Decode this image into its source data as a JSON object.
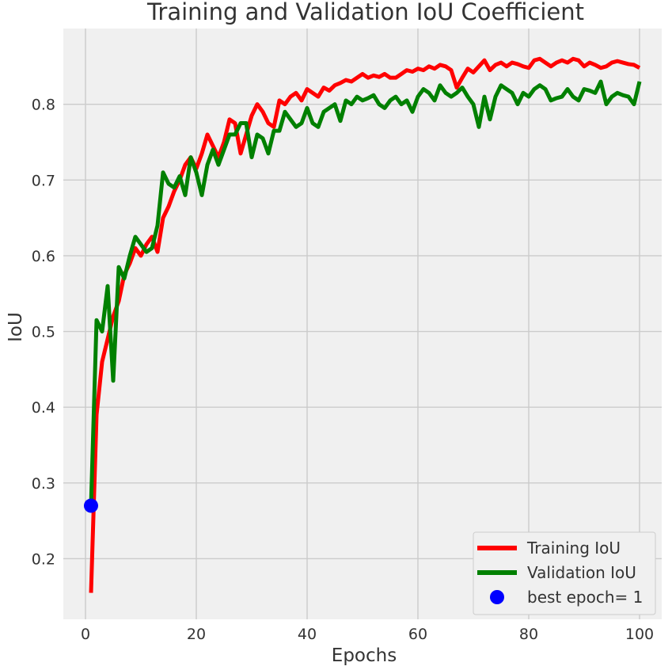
{
  "chart_data": {
    "type": "line",
    "title": "Training and Validation IoU Coefficient",
    "xlabel": "Epochs",
    "ylabel": "IoU",
    "xlim": [
      -4,
      104
    ],
    "ylim": [
      0.12,
      0.9
    ],
    "x_ticks": [
      0,
      20,
      40,
      60,
      80,
      100
    ],
    "y_ticks": [
      0.2,
      0.3,
      0.4,
      0.5,
      0.6,
      0.7,
      0.8
    ],
    "grid": true,
    "legend_position": "bottom-right",
    "series": [
      {
        "name": "Training IoU",
        "color": "#ff0000",
        "x": [
          1,
          2,
          3,
          4,
          5,
          6,
          7,
          8,
          9,
          10,
          11,
          12,
          13,
          14,
          15,
          16,
          17,
          18,
          19,
          20,
          21,
          22,
          23,
          24,
          25,
          26,
          27,
          28,
          29,
          30,
          31,
          32,
          33,
          34,
          35,
          36,
          37,
          38,
          39,
          40,
          41,
          42,
          43,
          44,
          45,
          46,
          47,
          48,
          49,
          50,
          51,
          52,
          53,
          54,
          55,
          56,
          57,
          58,
          59,
          60,
          61,
          62,
          63,
          64,
          65,
          66,
          67,
          68,
          69,
          70,
          71,
          72,
          73,
          74,
          75,
          76,
          77,
          78,
          79,
          80,
          81,
          82,
          83,
          84,
          85,
          86,
          87,
          88,
          89,
          90,
          91,
          92,
          93,
          94,
          95,
          96,
          97,
          98,
          99,
          100
        ],
        "values": [
          0.155,
          0.39,
          0.46,
          0.49,
          0.52,
          0.54,
          0.575,
          0.59,
          0.61,
          0.6,
          0.615,
          0.625,
          0.605,
          0.65,
          0.665,
          0.685,
          0.7,
          0.72,
          0.73,
          0.715,
          0.735,
          0.76,
          0.745,
          0.73,
          0.75,
          0.78,
          0.775,
          0.735,
          0.76,
          0.785,
          0.8,
          0.79,
          0.775,
          0.77,
          0.805,
          0.8,
          0.81,
          0.815,
          0.805,
          0.82,
          0.815,
          0.81,
          0.822,
          0.818,
          0.825,
          0.828,
          0.832,
          0.83,
          0.835,
          0.84,
          0.835,
          0.838,
          0.836,
          0.84,
          0.835,
          0.835,
          0.84,
          0.845,
          0.843,
          0.847,
          0.845,
          0.85,
          0.847,
          0.852,
          0.85,
          0.845,
          0.822,
          0.835,
          0.847,
          0.842,
          0.85,
          0.858,
          0.845,
          0.852,
          0.855,
          0.85,
          0.855,
          0.853,
          0.85,
          0.848,
          0.858,
          0.86,
          0.855,
          0.85,
          0.855,
          0.858,
          0.855,
          0.86,
          0.858,
          0.85,
          0.855,
          0.852,
          0.848,
          0.85,
          0.855,
          0.857,
          0.855,
          0.853,
          0.852,
          0.848
        ]
      },
      {
        "name": "Validation IoU",
        "color": "#008000",
        "x": [
          1,
          2,
          3,
          4,
          5,
          6,
          7,
          8,
          9,
          10,
          11,
          12,
          13,
          14,
          15,
          16,
          17,
          18,
          19,
          20,
          21,
          22,
          23,
          24,
          25,
          26,
          27,
          28,
          29,
          30,
          31,
          32,
          33,
          34,
          35,
          36,
          37,
          38,
          39,
          40,
          41,
          42,
          43,
          44,
          45,
          46,
          47,
          48,
          49,
          50,
          51,
          52,
          53,
          54,
          55,
          56,
          57,
          58,
          59,
          60,
          61,
          62,
          63,
          64,
          65,
          66,
          67,
          68,
          69,
          70,
          71,
          72,
          73,
          74,
          75,
          76,
          77,
          78,
          79,
          80,
          81,
          82,
          83,
          84,
          85,
          86,
          87,
          88,
          89,
          90,
          91,
          92,
          93,
          94,
          95,
          96,
          97,
          98,
          99,
          100
        ],
        "values": [
          0.27,
          0.515,
          0.5,
          0.56,
          0.435,
          0.585,
          0.57,
          0.6,
          0.625,
          0.615,
          0.605,
          0.61,
          0.64,
          0.71,
          0.695,
          0.69,
          0.705,
          0.68,
          0.73,
          0.71,
          0.68,
          0.72,
          0.74,
          0.72,
          0.74,
          0.76,
          0.76,
          0.775,
          0.775,
          0.73,
          0.76,
          0.755,
          0.735,
          0.765,
          0.765,
          0.79,
          0.78,
          0.77,
          0.775,
          0.795,
          0.775,
          0.77,
          0.79,
          0.795,
          0.8,
          0.778,
          0.805,
          0.8,
          0.81,
          0.805,
          0.808,
          0.812,
          0.8,
          0.795,
          0.805,
          0.81,
          0.8,
          0.805,
          0.79,
          0.81,
          0.82,
          0.815,
          0.805,
          0.825,
          0.815,
          0.81,
          0.815,
          0.822,
          0.81,
          0.8,
          0.77,
          0.81,
          0.78,
          0.81,
          0.825,
          0.82,
          0.815,
          0.8,
          0.815,
          0.81,
          0.82,
          0.825,
          0.82,
          0.805,
          0.808,
          0.81,
          0.82,
          0.81,
          0.805,
          0.82,
          0.818,
          0.815,
          0.83,
          0.8,
          0.81,
          0.815,
          0.812,
          0.81,
          0.8,
          0.83
        ]
      }
    ],
    "best_point": {
      "name": "best epoch= 1",
      "x": 1,
      "y": 0.27,
      "color": "#0000ff"
    }
  }
}
